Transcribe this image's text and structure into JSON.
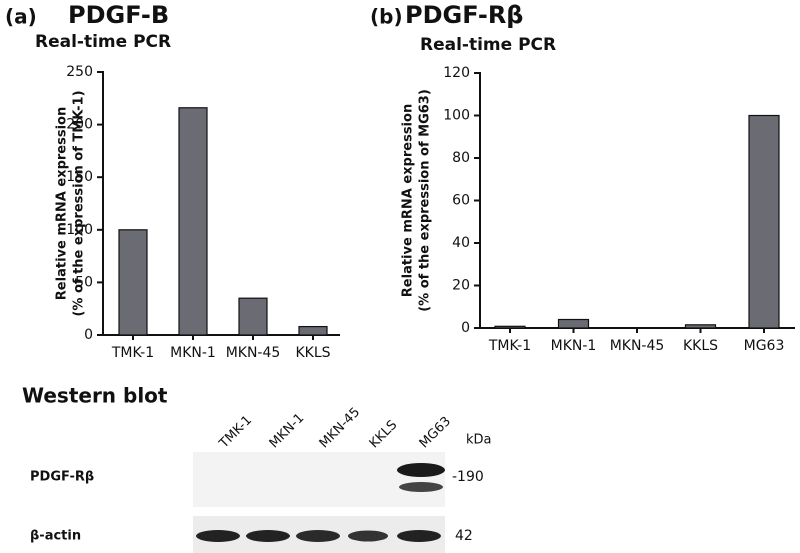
{
  "chart_data": [
    {
      "type": "bar",
      "panel": "(a)",
      "title": "PDGF-B",
      "subtitle": "Real-time PCR",
      "ylabel": [
        "Relative mRNA expression",
        "(% of the expression of TMK-1)"
      ],
      "categories": [
        "TMK-1",
        "MKN-1",
        "MKN-45",
        "KKLS"
      ],
      "values": [
        100,
        216,
        35,
        8
      ],
      "color": "#6b6b74",
      "ylim": [
        0,
        250
      ],
      "yticks": [
        0,
        50,
        100,
        150,
        200,
        250
      ]
    },
    {
      "type": "bar",
      "panel": "(b)",
      "title": "PDGF-Rβ",
      "subtitle": "Real-time PCR",
      "ylabel": [
        "Relative mRNA expression",
        "(% of the expression of MG63)"
      ],
      "categories": [
        "TMK-1",
        "MKN-1",
        "MKN-45",
        "KKLS",
        "MG63"
      ],
      "values": [
        0.8,
        4,
        0,
        1.5,
        100
      ],
      "color": "#6b6b74",
      "ylim": [
        0,
        120
      ],
      "yticks": [
        0,
        20,
        40,
        60,
        80,
        100,
        120
      ]
    }
  ],
  "western_blot": {
    "title": "Western blot",
    "lanes": [
      "TMK-1",
      "MKN-1",
      "MKN-45",
      "KKLS",
      "MG63"
    ],
    "unit": "kDa",
    "rows": [
      {
        "label": "PDGF-Rβ",
        "size": "-190"
      },
      {
        "label": "β-actin",
        "size": "42"
      }
    ]
  }
}
